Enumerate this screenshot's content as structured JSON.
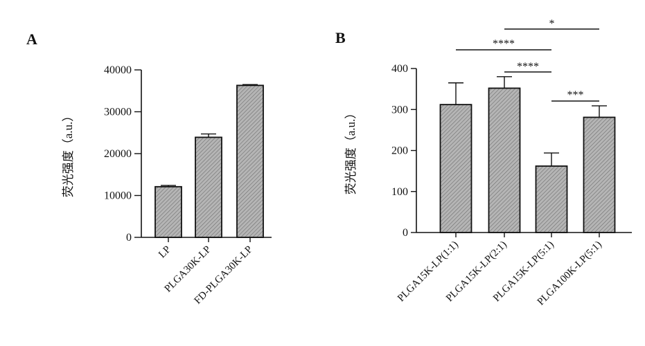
{
  "colors": {
    "bar_fill": "#a9a9a9",
    "bar_stroke": "#111111",
    "axis": "#111111",
    "background": "#ffffff"
  },
  "chart_data": [
    {
      "type": "bar",
      "panel_label": "A",
      "ylabel": "荧光强度（a.u.）",
      "xlabel": "",
      "ylim": [
        0,
        40000
      ],
      "yticks": [
        0,
        10000,
        20000,
        30000,
        40000
      ],
      "ytick_labels": [
        "0",
        "10000",
        "20000",
        "30000",
        "40000"
      ],
      "categories": [
        "LP",
        "PLGA30K-LP",
        "FD-PLGA30K-LP"
      ],
      "values": [
        12100,
        23900,
        36300
      ],
      "errors": [
        300,
        800,
        200
      ],
      "significance": [],
      "grid": false,
      "legend": "none"
    },
    {
      "type": "bar",
      "panel_label": "B",
      "ylabel": "荧光强度（a.u.）",
      "xlabel": "",
      "ylim": [
        0,
        400
      ],
      "yticks": [
        0,
        100,
        200,
        300,
        400
      ],
      "ytick_labels": [
        "0",
        "100",
        "200",
        "300",
        "400"
      ],
      "categories": [
        "PLGA15K-LP(1:1)",
        "PLGA15K-LP(2:1)",
        "PLGA15K-LP(5:1)",
        "PLGA100K-LP(5:1)"
      ],
      "values": [
        312,
        352,
        162,
        281
      ],
      "errors": [
        53,
        28,
        32,
        28
      ],
      "significance": [
        {
          "from": 1,
          "to": 3,
          "label": "*"
        },
        {
          "from": 0,
          "to": 2,
          "label": "****"
        },
        {
          "from": 1,
          "to": 2,
          "label": "****"
        },
        {
          "from": 2,
          "to": 3,
          "label": "***"
        }
      ],
      "grid": false,
      "legend": "none"
    }
  ]
}
